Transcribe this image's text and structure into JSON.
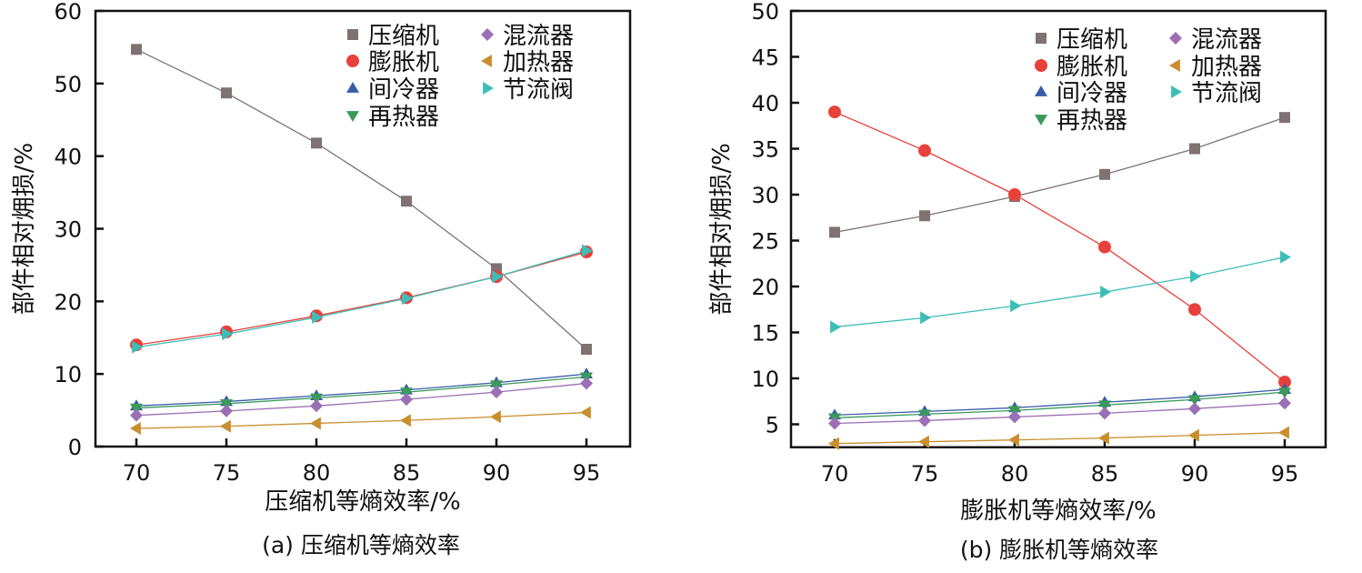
{
  "chart_data": [
    {
      "type": "line",
      "title": "",
      "xlabel": "压缩机等熵效率/%",
      "ylabel": "部件相对㶲损/%",
      "caption": "(a) 压缩机等熵效率",
      "x": [
        70,
        75,
        80,
        85,
        90,
        95
      ],
      "xlim": [
        70,
        95
      ],
      "ylim": [
        0,
        60
      ],
      "yticks": [
        0,
        10,
        20,
        30,
        40,
        50,
        60
      ],
      "legend_position": "top-right",
      "series": [
        {
          "name": "压缩机",
          "marker": "square",
          "color": "#7f7272",
          "values": [
            54.7,
            48.7,
            41.8,
            33.8,
            24.5,
            13.4
          ]
        },
        {
          "name": "膨胀机",
          "marker": "circle",
          "color": "#e8403a",
          "values": [
            14.0,
            15.8,
            18.0,
            20.5,
            23.4,
            26.8
          ]
        },
        {
          "name": "间冷器",
          "marker": "triangle-up",
          "color": "#3a5ca8",
          "values": [
            5.6,
            6.2,
            7.0,
            7.8,
            8.8,
            10.0
          ]
        },
        {
          "name": "再热器",
          "marker": "triangle-down",
          "color": "#3a9a5a",
          "values": [
            5.3,
            5.9,
            6.7,
            7.5,
            8.5,
            9.6
          ]
        },
        {
          "name": "混流器",
          "marker": "diamond",
          "color": "#9b6fb5",
          "values": [
            4.3,
            4.9,
            5.6,
            6.5,
            7.5,
            8.7
          ]
        },
        {
          "name": "加热器",
          "marker": "triangle-left",
          "color": "#c98e2e",
          "values": [
            2.5,
            2.8,
            3.2,
            3.6,
            4.1,
            4.7
          ]
        },
        {
          "name": "节流阀",
          "marker": "triangle-right",
          "color": "#3dbdb8",
          "values": [
            13.7,
            15.5,
            17.8,
            20.4,
            23.4,
            27.0
          ]
        }
      ]
    },
    {
      "type": "line",
      "title": "",
      "xlabel": "膨胀机等熵效率/%",
      "ylabel": "部件相对㶲损/%",
      "caption": "(b) 膨胀机等熵效率",
      "x": [
        70,
        75,
        80,
        85,
        90,
        95
      ],
      "xlim": [
        70,
        95
      ],
      "ylim": [
        2.5,
        50
      ],
      "yticks": [
        5,
        10,
        15,
        20,
        25,
        30,
        35,
        40,
        45,
        50
      ],
      "legend_position": "top-right",
      "series": [
        {
          "name": "压缩机",
          "marker": "square",
          "color": "#7f7272",
          "values": [
            25.9,
            27.7,
            29.8,
            32.2,
            35.0,
            38.4
          ]
        },
        {
          "name": "膨胀机",
          "marker": "circle",
          "color": "#e8403a",
          "values": [
            39.0,
            34.8,
            30.0,
            24.3,
            17.5,
            9.6
          ]
        },
        {
          "name": "间冷器",
          "marker": "triangle-up",
          "color": "#3a5ca8",
          "values": [
            6.0,
            6.4,
            6.8,
            7.4,
            8.0,
            8.8
          ]
        },
        {
          "name": "再热器",
          "marker": "triangle-down",
          "color": "#3a9a5a",
          "values": [
            5.7,
            6.1,
            6.5,
            7.1,
            7.7,
            8.5
          ]
        },
        {
          "name": "混流器",
          "marker": "diamond",
          "color": "#9b6fb5",
          "values": [
            5.1,
            5.4,
            5.8,
            6.2,
            6.7,
            7.3
          ]
        },
        {
          "name": "加热器",
          "marker": "triangle-left",
          "color": "#c98e2e",
          "values": [
            2.9,
            3.1,
            3.3,
            3.5,
            3.8,
            4.1
          ]
        },
        {
          "name": "节流阀",
          "marker": "triangle-right",
          "color": "#3dbdb8",
          "values": [
            15.6,
            16.6,
            17.9,
            19.4,
            21.1,
            23.2
          ]
        }
      ]
    }
  ]
}
